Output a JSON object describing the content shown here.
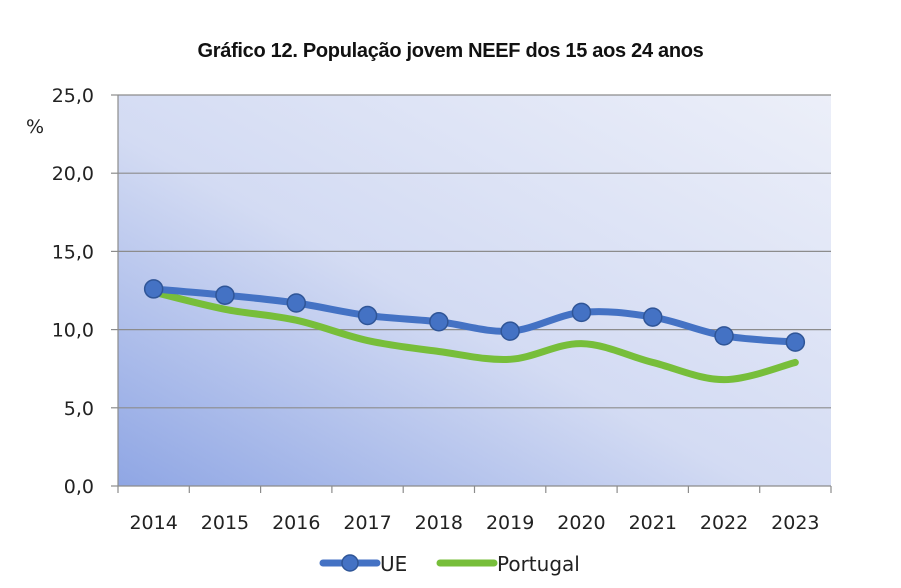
{
  "chart_data": {
    "type": "line",
    "title": "Gráfico 12. População jovem NEEF dos 15 aos 24 anos",
    "xlabel": "",
    "ylabel": "%",
    "x": [
      "2014",
      "2015",
      "2016",
      "2017",
      "2018",
      "2019",
      "2020",
      "2021",
      "2022",
      "2023"
    ],
    "ylim": [
      0,
      25
    ],
    "yticks": [
      0,
      5,
      10,
      15,
      20,
      25
    ],
    "ytick_labels": [
      "0,0",
      "5,0",
      "10,0",
      "15,0",
      "20,0",
      "25,0"
    ],
    "grid": true,
    "legend_position": "bottom",
    "series": [
      {
        "name": "UE",
        "color": "#4472C4",
        "marker": "circle",
        "smooth": true,
        "values": [
          12.6,
          12.2,
          11.7,
          10.9,
          10.5,
          9.9,
          11.1,
          10.8,
          9.6,
          9.2
        ]
      },
      {
        "name": "Portugal",
        "color": "#77BE3A",
        "marker": "none",
        "smooth": true,
        "values": [
          12.4,
          11.3,
          10.6,
          9.3,
          8.6,
          8.1,
          9.1,
          7.9,
          6.8,
          7.9
        ]
      }
    ]
  }
}
